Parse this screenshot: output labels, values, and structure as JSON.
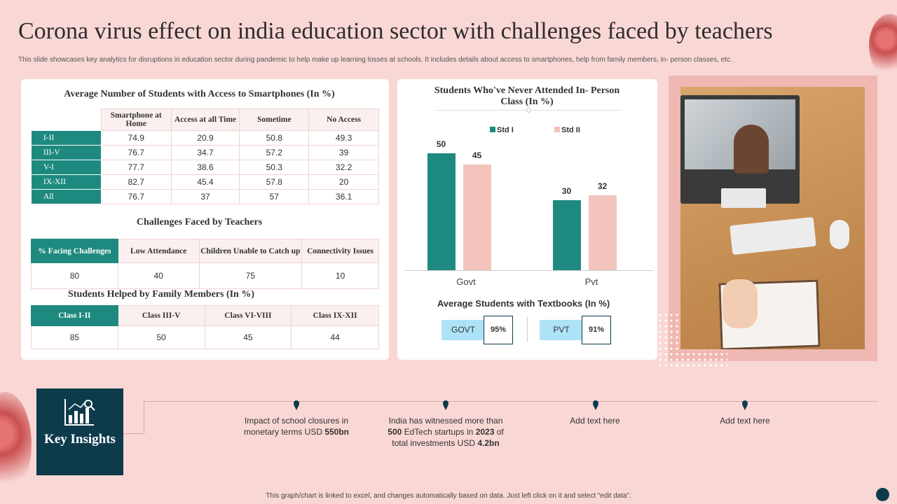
{
  "header": {
    "title": "Corona virus effect on india education sector with challenges faced by teachers",
    "subtitle": "This slide showcases key analytics for disruptions in education sector during pandemic to help make up learning losses at schools. It includes details about access to smartphones, help from family members, in- person classes, etc."
  },
  "smartphones": {
    "title": "Average Number of Students with Access to Smartphones (In %)",
    "columns": [
      "Smartphone at Home",
      "Access at all Time",
      "Sometime",
      "No Access"
    ],
    "rows": [
      {
        "label": "I-II",
        "values": [
          "74.9",
          "20.9",
          "50.8",
          "49.3"
        ]
      },
      {
        "label": "III-V",
        "values": [
          "76.7",
          "34.7",
          "57.2",
          "39"
        ]
      },
      {
        "label": "V-I",
        "values": [
          "77.7",
          "38.6",
          "50.3",
          "32.2"
        ]
      },
      {
        "label": "IX-XII",
        "values": [
          "82.7",
          "45.4",
          "57.8",
          "20"
        ]
      },
      {
        "label": "All",
        "values": [
          "76.7",
          "37",
          "57",
          "36.1"
        ]
      }
    ]
  },
  "challenges": {
    "title": "Challenges Faced by Teachers",
    "columns": [
      "% Facing Challenges",
      "Low Attendance",
      "Children Unable to Catch up",
      "Connectivity Issues"
    ],
    "values": [
      "80",
      "40",
      "75",
      "10"
    ]
  },
  "family": {
    "title": "Students Helped by Family Members (In %)",
    "columns": [
      "Class I-II",
      "Class III-V",
      "Class VI-VIII",
      "Class IX-XII"
    ],
    "values": [
      "85",
      "50",
      "45",
      "44"
    ]
  },
  "chart_data": {
    "type": "bar",
    "title": "Students Who've Never Attended In- Person Class (In %)",
    "categories": [
      "Govt",
      "Pvt"
    ],
    "series": [
      {
        "name": "Std I",
        "values": [
          50,
          30
        ],
        "color": "#1e8a7f"
      },
      {
        "name": "Std II",
        "values": [
          45,
          32
        ],
        "color": "#f2c4bc"
      }
    ],
    "ylim": [
      0,
      60
    ],
    "legend": "top"
  },
  "textbooks": {
    "title": "Average Students with Textbooks (In %)",
    "items": [
      {
        "label": "GOVT",
        "value": "95%"
      },
      {
        "label": "PVT",
        "value": "91%"
      }
    ],
    "label_color": "#aee3f7"
  },
  "insights": {
    "heading": "Key Insights",
    "icon": "chart-magnifier-icon",
    "items": [
      {
        "line1": "Impact of school closures in",
        "line2_pre": "monetary terms USD ",
        "line2_bold": "550bn"
      },
      {
        "line1": "India has witnessed more than",
        "line2_bold": "500",
        "line2_mid": " EdTech startups in ",
        "line2_bold2": "2023",
        "line2_post": " of",
        "line3_pre": "total investments USD ",
        "line3_bold": "4.2bn"
      },
      {
        "text": "Add text here"
      },
      {
        "text": "Add text here"
      }
    ]
  },
  "footer": "This graph/chart is linked to excel, and changes automatically based on data. Just left click on it and select “edit data”.",
  "colors": {
    "teal": "#1e8a7f",
    "navy": "#0d3b4c",
    "pink_bg": "#f9d7d5"
  }
}
